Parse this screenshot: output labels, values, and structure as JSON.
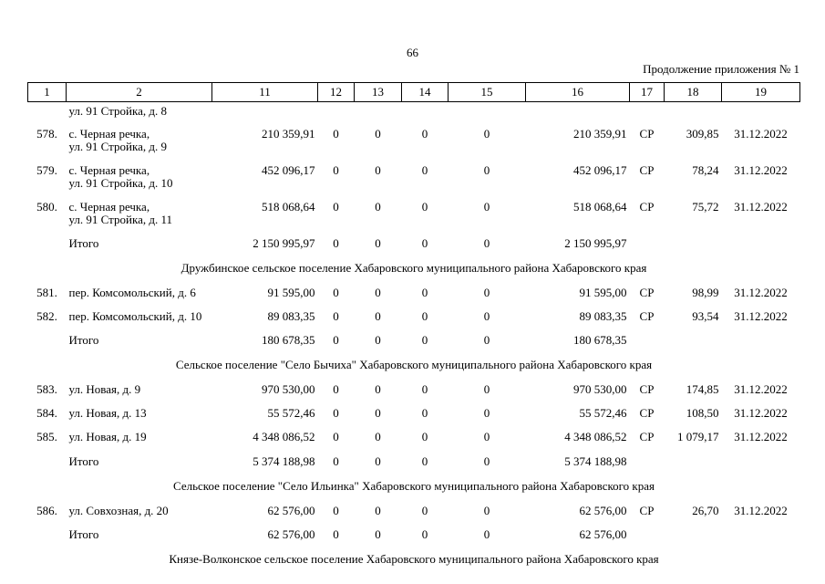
{
  "page": {
    "number": "66",
    "continuation_note": "Продолжение приложения № 1"
  },
  "table": {
    "columns": [
      "1",
      "2",
      "11",
      "12",
      "13",
      "14",
      "15",
      "16",
      "17",
      "18",
      "19"
    ],
    "rows": [
      {
        "type": "continuation",
        "address": "ул. 91 Стройка, д. 8"
      },
      {
        "type": "data",
        "num": "578.",
        "address": "с. Черная речка,\nул. 91 Стройка, д. 9",
        "c11": "210 359,91",
        "c12": "0",
        "c13": "0",
        "c14": "0",
        "c15": "0",
        "c16": "210 359,91",
        "c17": "СР",
        "c18": "309,85",
        "c19": "31.12.2022"
      },
      {
        "type": "data",
        "num": "579.",
        "address": "с. Черная речка,\nул. 91 Стройка, д. 10",
        "c11": "452 096,17",
        "c12": "0",
        "c13": "0",
        "c14": "0",
        "c15": "0",
        "c16": "452 096,17",
        "c17": "СР",
        "c18": "78,24",
        "c19": "31.12.2022"
      },
      {
        "type": "data",
        "num": "580.",
        "address": "с. Черная речка,\nул. 91 Стройка, д. 11",
        "c11": "518 068,64",
        "c12": "0",
        "c13": "0",
        "c14": "0",
        "c15": "0",
        "c16": "518 068,64",
        "c17": "СР",
        "c18": "75,72",
        "c19": "31.12.2022"
      },
      {
        "type": "total",
        "label": "Итого",
        "c11": "2 150 995,97",
        "c12": "0",
        "c13": "0",
        "c14": "0",
        "c15": "0",
        "c16": "2 150 995,97"
      },
      {
        "type": "section",
        "title": "Дружбинское сельское поселение Хабаровского муниципального района Хабаровского края"
      },
      {
        "type": "data",
        "num": "581.",
        "address": "пер. Комсомольский, д. 6",
        "c11": "91 595,00",
        "c12": "0",
        "c13": "0",
        "c14": "0",
        "c15": "0",
        "c16": "91 595,00",
        "c17": "СР",
        "c18": "98,99",
        "c19": "31.12.2022"
      },
      {
        "type": "data",
        "num": "582.",
        "address": "пер. Комсомольский, д. 10",
        "c11": "89 083,35",
        "c12": "0",
        "c13": "0",
        "c14": "0",
        "c15": "0",
        "c16": "89 083,35",
        "c17": "СР",
        "c18": "93,54",
        "c19": "31.12.2022"
      },
      {
        "type": "total",
        "label": "Итого",
        "c11": "180 678,35",
        "c12": "0",
        "c13": "0",
        "c14": "0",
        "c15": "0",
        "c16": "180 678,35"
      },
      {
        "type": "section",
        "title": "Сельское поселение \"Село Бычиха\" Хабаровского муниципального района Хабаровского края"
      },
      {
        "type": "data",
        "num": "583.",
        "address": "ул. Новая, д. 9",
        "c11": "970 530,00",
        "c12": "0",
        "c13": "0",
        "c14": "0",
        "c15": "0",
        "c16": "970 530,00",
        "c17": "СР",
        "c18": "174,85",
        "c19": "31.12.2022"
      },
      {
        "type": "data",
        "num": "584.",
        "address": "ул. Новая, д. 13",
        "c11": "55 572,46",
        "c12": "0",
        "c13": "0",
        "c14": "0",
        "c15": "0",
        "c16": "55 572,46",
        "c17": "СР",
        "c18": "108,50",
        "c19": "31.12.2022"
      },
      {
        "type": "data",
        "num": "585.",
        "address": "ул. Новая, д. 19",
        "c11": "4 348 086,52",
        "c12": "0",
        "c13": "0",
        "c14": "0",
        "c15": "0",
        "c16": "4 348 086,52",
        "c17": "СР",
        "c18": "1 079,17",
        "c19": "31.12.2022"
      },
      {
        "type": "total",
        "label": "Итого",
        "c11": "5 374 188,98",
        "c12": "0",
        "c13": "0",
        "c14": "0",
        "c15": "0",
        "c16": "5 374 188,98"
      },
      {
        "type": "section",
        "title": "Сельское поселение \"Село Ильинка\" Хабаровского муниципального района Хабаровского края"
      },
      {
        "type": "data",
        "num": "586.",
        "address": "ул. Совхозная, д. 20",
        "c11": "62 576,00",
        "c12": "0",
        "c13": "0",
        "c14": "0",
        "c15": "0",
        "c16": "62 576,00",
        "c17": "СР",
        "c18": "26,70",
        "c19": "31.12.2022"
      },
      {
        "type": "total",
        "label": "Итого",
        "c11": "62 576,00",
        "c12": "0",
        "c13": "0",
        "c14": "0",
        "c15": "0",
        "c16": "62 576,00"
      },
      {
        "type": "section",
        "title": "Князе-Волконское сельское поселение Хабаровского муниципального района Хабаровского края"
      }
    ]
  }
}
